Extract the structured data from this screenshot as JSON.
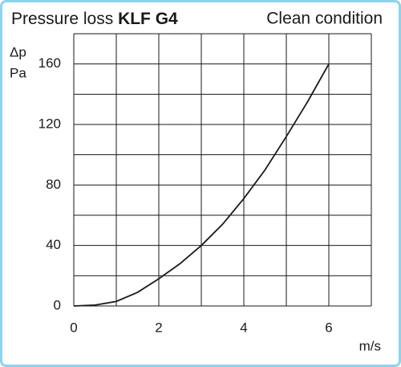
{
  "chart_data": {
    "type": "line",
    "title": "Pressure loss",
    "title_bold": "KLF G4",
    "subtitle": "Clean condition",
    "y_label_lines": [
      "Δp",
      "Pa"
    ],
    "x_label": "m/s",
    "x": [
      0,
      0.5,
      1,
      1.5,
      2,
      2.5,
      3,
      3.5,
      4,
      4.5,
      5,
      5.5,
      6
    ],
    "values": [
      0,
      0.6,
      3,
      9,
      18,
      28,
      40,
      54,
      71,
      90,
      112,
      135,
      160
    ],
    "color": "#1a1a1a",
    "xlim": [
      0,
      7
    ],
    "xticks": [
      0,
      2,
      4,
      6
    ],
    "xgrid": [
      0,
      1,
      2,
      3,
      4,
      5,
      6,
      7
    ],
    "ylim": [
      0,
      180
    ],
    "yticks": [
      0,
      40,
      80,
      120,
      160
    ],
    "ygrid": [
      0,
      20,
      40,
      60,
      80,
      100,
      120,
      140,
      160,
      180
    ],
    "grid": true
  }
}
